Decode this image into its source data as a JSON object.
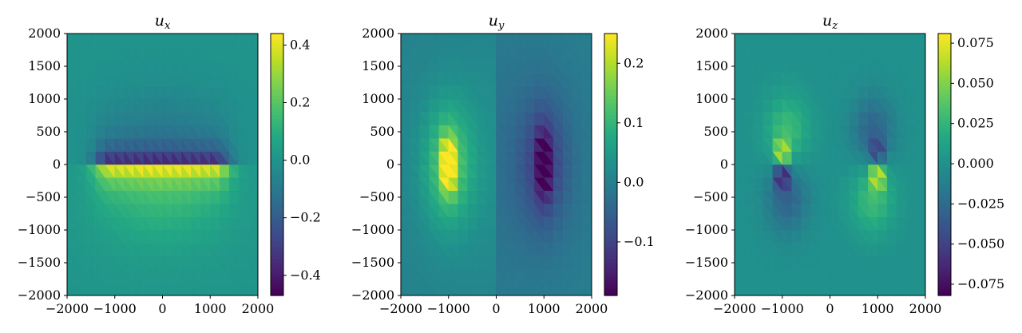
{
  "chart_data": [
    {
      "type": "heatmap",
      "title_base": "u",
      "title_sub": "x",
      "xlim": [
        -2000,
        2000
      ],
      "ylim": [
        -2000,
        2000
      ],
      "xticks": [
        -2000,
        -1000,
        0,
        1000,
        2000
      ],
      "xtick_labels": [
        "−2000",
        "−1000",
        "0",
        "1000",
        "2000"
      ],
      "yticks": [
        2000,
        1500,
        1000,
        500,
        0,
        -500,
        -1000,
        -1500,
        -2000
      ],
      "ytick_labels": [
        "2000",
        "1500",
        "1000",
        "500",
        "0",
        "−500",
        "−1000",
        "−1500",
        "−2000"
      ],
      "colormap": "viridis",
      "vmin": -0.47,
      "vmax": 0.44,
      "colorbar_ticks": [
        0.4,
        0.2,
        0.0,
        -0.2,
        -0.4
      ],
      "colorbar_labels": [
        "0.4",
        "0.2",
        "0.0",
        "−0.2",
        "−0.4"
      ],
      "field": "Opening/strike-slip style: negative band just above y=0, strong positive band just below y=0 between x≈−1000 and 1000, decaying away from the fault"
    },
    {
      "type": "heatmap",
      "title_base": "u",
      "title_sub": "y",
      "xlim": [
        -2000,
        2000
      ],
      "ylim": [
        -2000,
        2000
      ],
      "xticks": [
        -2000,
        -1000,
        0,
        1000,
        2000
      ],
      "xtick_labels": [
        "−2000",
        "−1000",
        "0",
        "1000",
        "2000"
      ],
      "yticks": [
        2000,
        1500,
        1000,
        500,
        0,
        -500,
        -1000,
        -1500,
        -2000
      ],
      "ytick_labels": [
        "2000",
        "1500",
        "1000",
        "500",
        "0",
        "−500",
        "−1000",
        "−1500",
        "−2000"
      ],
      "colormap": "viridis",
      "vmin": -0.19,
      "vmax": 0.25,
      "colorbar_ticks": [
        0.2,
        0.1,
        0.0,
        -0.1
      ],
      "colorbar_labels": [
        "0.2",
        "0.1",
        "0.0",
        "−0.1"
      ],
      "field": "Positive lobe near x=−1000, negative lobe near x=1000, both concentrated around y=0"
    },
    {
      "type": "heatmap",
      "title_base": "u",
      "title_sub": "z",
      "xlim": [
        -2000,
        2000
      ],
      "ylim": [
        -2000,
        2000
      ],
      "xticks": [
        -2000,
        -1000,
        0,
        1000,
        2000
      ],
      "xtick_labels": [
        "−2000",
        "−1000",
        "0",
        "1000",
        "2000"
      ],
      "yticks": [
        2000,
        1500,
        1000,
        500,
        0,
        -500,
        -1000,
        -1500,
        -2000
      ],
      "ytick_labels": [
        "2000",
        "1500",
        "1000",
        "500",
        "0",
        "−500",
        "−1000",
        "−1500",
        "−2000"
      ],
      "colormap": "viridis",
      "vmin": -0.082,
      "vmax": 0.081,
      "colorbar_ticks": [
        0.075,
        0.05,
        0.025,
        0.0,
        -0.025,
        -0.05,
        -0.075
      ],
      "colorbar_labels": [
        "0.075",
        "0.050",
        "0.025",
        "0.000",
        "−0.025",
        "−0.050",
        "−0.075"
      ],
      "field": "Quadrupole: positive above-left (x≈−1000, y>0) and below-right (x≈1000, y<0); negative below-left and above-right"
    }
  ]
}
